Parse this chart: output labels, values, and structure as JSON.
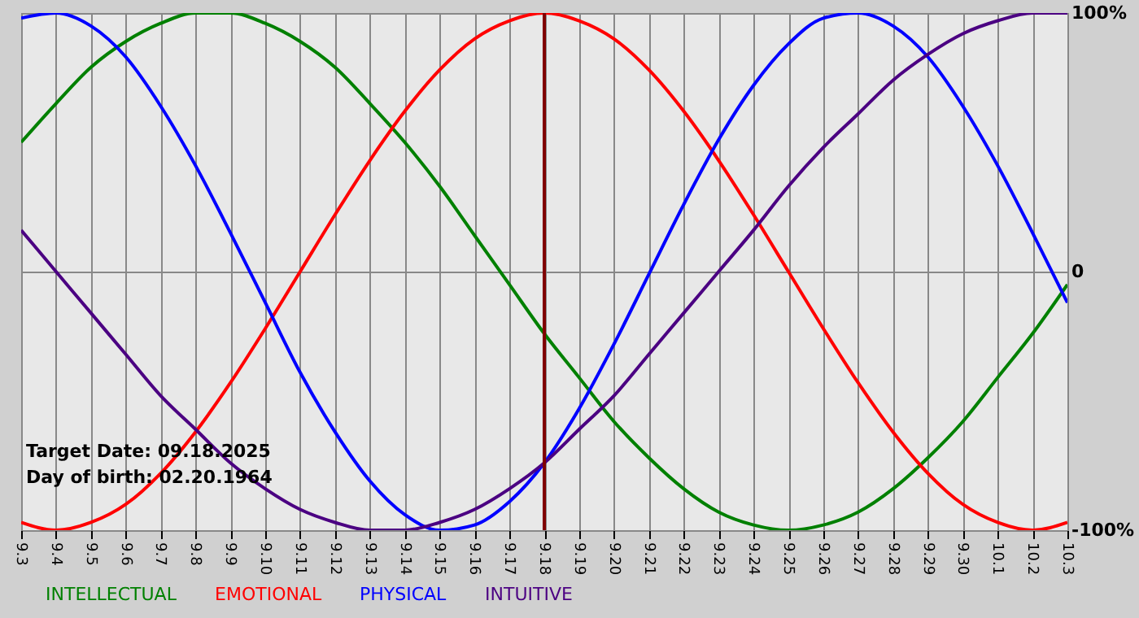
{
  "chart_data": {
    "type": "line",
    "categories": [
      "9.3",
      "9.4",
      "9.5",
      "9.6",
      "9.7",
      "9.8",
      "9.9",
      "9.10",
      "9.11",
      "9.12",
      "9.13",
      "9.14",
      "9.15",
      "9.16",
      "9.17",
      "9.18",
      "9.19",
      "9.20",
      "9.21",
      "9.22",
      "9.23",
      "9.24",
      "9.25",
      "9.26",
      "9.27",
      "9.28",
      "9.29",
      "9.30",
      "10.1",
      "10.2",
      "10.3"
    ],
    "series": [
      {
        "name": "INTELLECTUAL",
        "color": "#008000",
        "values": [
          50,
          65,
          79,
          89,
          96,
          100,
          100,
          96,
          89,
          79,
          65,
          50,
          33,
          14,
          -5,
          -24,
          -41,
          -58,
          -72,
          -84,
          -93,
          -98,
          -100,
          -98,
          -93,
          -84,
          -72,
          -58,
          -41,
          -24,
          -5
        ]
      },
      {
        "name": "EMOTIONAL",
        "color": "#ff0000",
        "values": [
          -97,
          -100,
          -97,
          -90,
          -78,
          -62,
          -43,
          -22,
          0,
          22,
          43,
          62,
          78,
          90,
          97,
          100,
          97,
          90,
          78,
          62,
          43,
          22,
          0,
          -22,
          -43,
          -62,
          -78,
          -90,
          -97,
          -100,
          -97
        ]
      },
      {
        "name": "PHYSICAL",
        "color": "#0000ff",
        "values": [
          98,
          100,
          95,
          83,
          64,
          41,
          15,
          -12,
          -39,
          -62,
          -81,
          -94,
          -100,
          -98,
          -89,
          -74,
          -53,
          -28,
          -1,
          26,
          51,
          72,
          88,
          98,
          100,
          95,
          83,
          64,
          41,
          15,
          -12
        ]
      },
      {
        "name": "INTUITIVE",
        "color": "#4b0082",
        "values": [
          16,
          0,
          -16,
          -32,
          -48,
          -61,
          -74,
          -84,
          -92,
          -97,
          -100,
          -100,
          -97,
          -92,
          -84,
          -74,
          -61,
          -48,
          -32,
          -16,
          0,
          16,
          33,
          48,
          61,
          74,
          84,
          92,
          97,
          100,
          100
        ]
      }
    ],
    "ylim": [
      -100,
      100
    ],
    "yticks": [
      {
        "value": -100,
        "label": "-100%"
      },
      {
        "value": 0,
        "label": "0"
      },
      {
        "value": 100,
        "label": "100%"
      }
    ],
    "grid": true,
    "legend": "bottom left",
    "ref_lines": [
      {
        "axis": "x",
        "value": "9.18",
        "color": "#800000"
      }
    ],
    "annotations": [
      "Target Date: 09.18.2025",
      "Day of birth: 02.20.1964"
    ]
  }
}
